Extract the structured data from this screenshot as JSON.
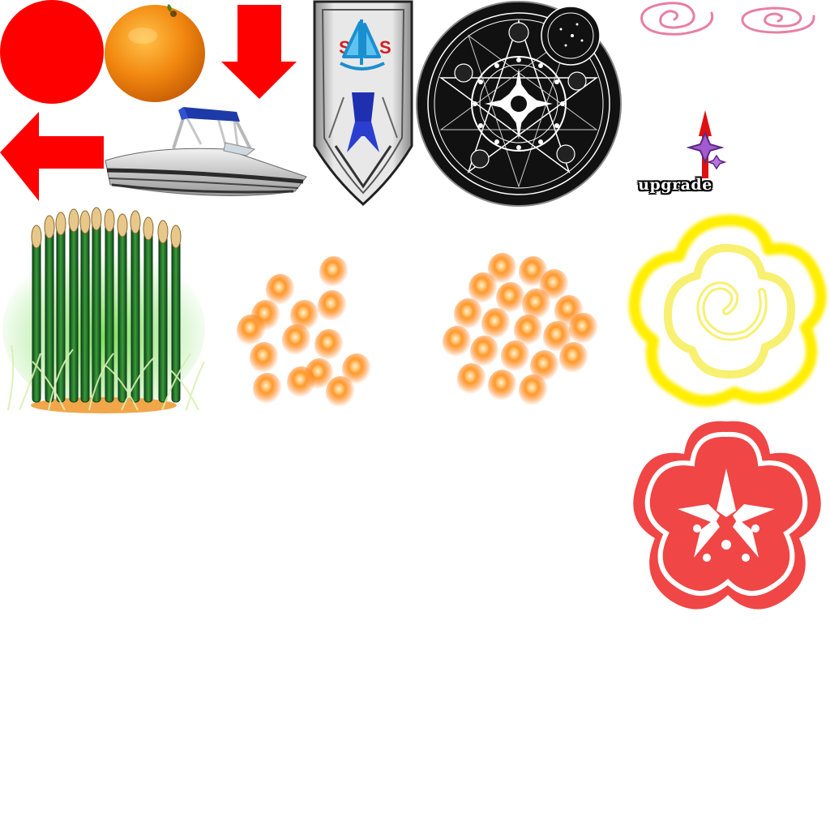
{
  "sheet": {
    "background": "#ffffff"
  },
  "sprites": [
    {
      "id": "red-circle",
      "icon": "red-circle-icon",
      "color": "#ff0000"
    },
    {
      "id": "orange",
      "icon": "orange-fruit-icon",
      "color": "#f28a14"
    },
    {
      "id": "arrow-down",
      "icon": "arrow-down-icon",
      "color": "#ff0000"
    },
    {
      "id": "arrow-left",
      "icon": "arrow-left-icon",
      "color": "#ff0000"
    },
    {
      "id": "speedboat",
      "icon": "speedboat-icon",
      "color": "#1f3fbf"
    },
    {
      "id": "sail-banner",
      "icon": "sailboat-banner-icon",
      "color": "#1aa3d9"
    },
    {
      "id": "magic-circle",
      "icon": "magic-circle-icon",
      "color": "#000000"
    },
    {
      "id": "spiral-1",
      "icon": "pink-spiral-icon",
      "color": "#e87fa3"
    },
    {
      "id": "spiral-2",
      "icon": "pink-spiral-icon",
      "color": "#e87fa3"
    },
    {
      "id": "upgrade",
      "icon": "upgrade-badge-icon",
      "color": "#8a3fb5"
    },
    {
      "id": "reeds",
      "icon": "bamboo-reeds-icon",
      "color": "#2e7d32"
    },
    {
      "id": "cluster-1",
      "icon": "orange-orbs-icon",
      "color": "#ff7a1a"
    },
    {
      "id": "cluster-2",
      "icon": "orange-orbs-icon",
      "color": "#ff7a1a"
    },
    {
      "id": "yellow-flower",
      "icon": "yellow-swirl-flower-icon",
      "color": "#ffee00"
    },
    {
      "id": "red-flower",
      "icon": "red-plum-blossom-icon",
      "color": "#f04646"
    }
  ],
  "upgrade": {
    "label": "upgrade"
  }
}
